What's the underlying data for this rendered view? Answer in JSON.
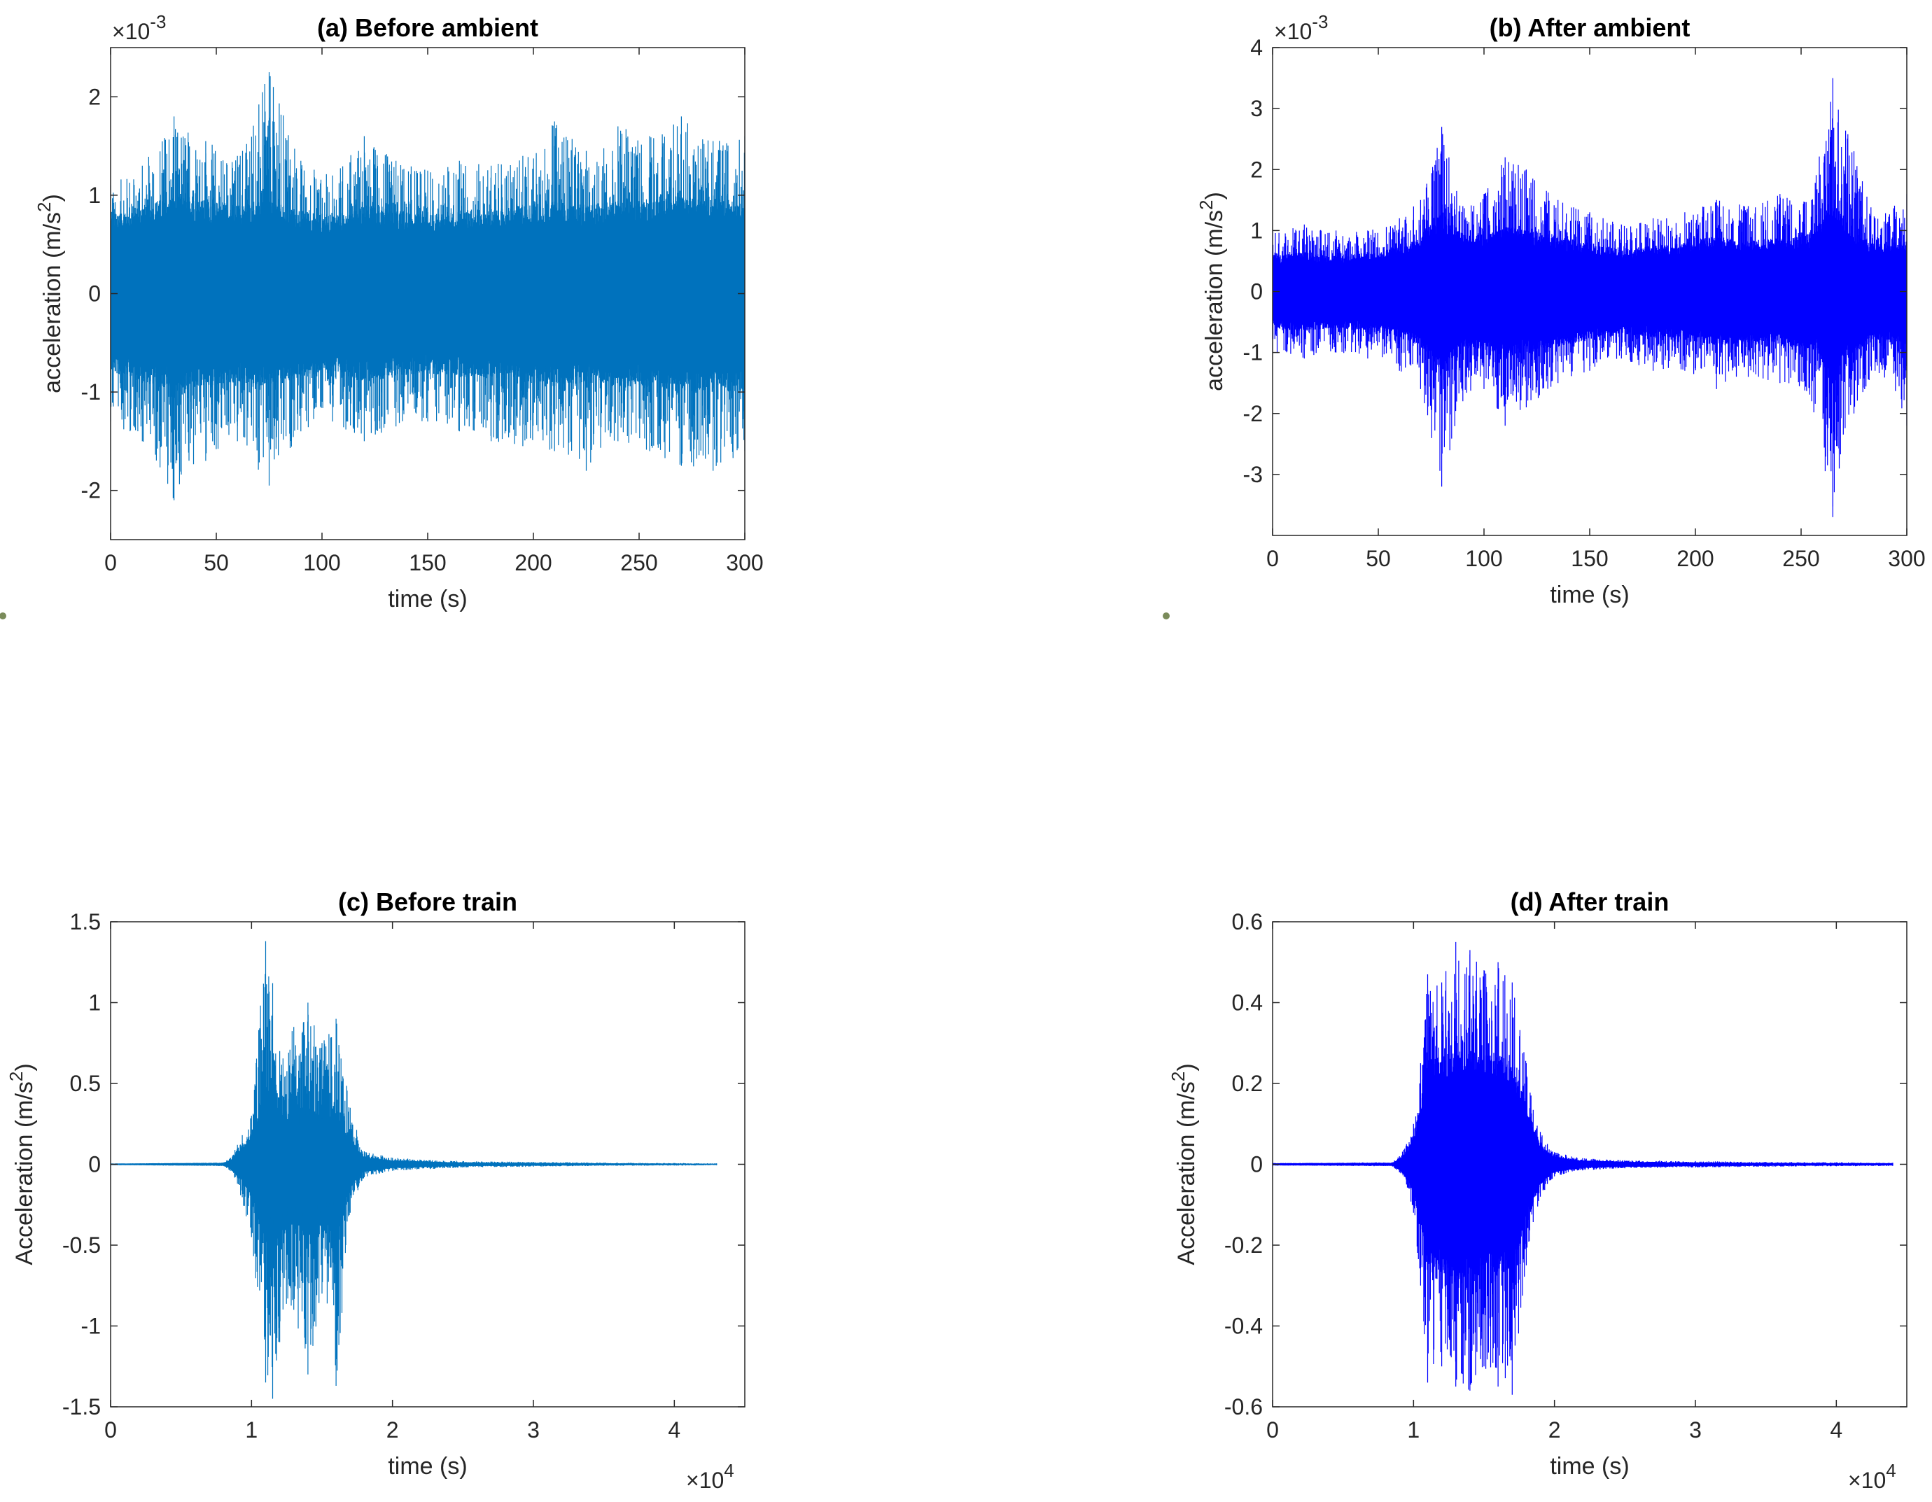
{
  "colors": {
    "before": "#0072BD",
    "after": "#0000FF",
    "axes": "#262626",
    "marker": "#7A8B5A"
  },
  "chart_data": [
    {
      "id": "a",
      "type": "line",
      "title": "(a) Before ambient",
      "xlabel": "time (s)",
      "ylabel_main": "acceleration (m/s",
      "ylabel_sup": "2",
      "ylabel_end": ")",
      "exponent_base": "×10",
      "exponent_power": "-3",
      "exponent_position": "top-left",
      "xlim": [
        0,
        300
      ],
      "ylim": [
        -2.5,
        2.5
      ],
      "xticks": [
        0,
        50,
        100,
        150,
        200,
        250,
        300
      ],
      "xtick_labels": [
        "0",
        "50",
        "100",
        "150",
        "200",
        "250",
        "300"
      ],
      "yticks": [
        -2,
        -1,
        0,
        1,
        2
      ],
      "ytick_labels": [
        "-2",
        "-1",
        "0",
        "1",
        "2"
      ],
      "color": "#0072BD",
      "grid": false,
      "series": [
        {
          "x": [
            0,
            15,
            30,
            45,
            60,
            75,
            90,
            105,
            120,
            135,
            150,
            165,
            180,
            195,
            210,
            225,
            240,
            255,
            270,
            285,
            300
          ],
          "upper": [
            1.1,
            1.3,
            1.8,
            1.55,
            1.4,
            2.25,
            1.35,
            1.2,
            1.6,
            1.35,
            1.25,
            1.35,
            1.3,
            1.4,
            1.75,
            1.45,
            1.7,
            1.6,
            1.8,
            1.55,
            1.6
          ],
          "lower": [
            -1.3,
            -1.5,
            -2.1,
            -1.7,
            -1.5,
            -1.95,
            -1.4,
            -1.3,
            -1.5,
            -1.35,
            -1.3,
            -1.4,
            -1.5,
            -1.55,
            -1.6,
            -1.8,
            -1.5,
            -1.6,
            -1.75,
            -1.8,
            -1.6
          ],
          "core": [
            0.8,
            0.9,
            1.0,
            0.95,
            0.9,
            0.95,
            0.85,
            0.8,
            0.9,
            0.85,
            0.8,
            0.85,
            0.85,
            0.9,
            0.95,
            0.9,
            0.95,
            0.95,
            1.0,
            1.0,
            1.0
          ]
        }
      ]
    },
    {
      "id": "b",
      "type": "line",
      "title": "(b) After ambient",
      "xlabel": "time (s)",
      "ylabel_main": "acceleration (m/s",
      "ylabel_sup": "2",
      "ylabel_end": ")",
      "exponent_base": "×10",
      "exponent_power": "-3",
      "exponent_position": "top-left",
      "xlim": [
        0,
        300
      ],
      "ylim": [
        -4,
        4
      ],
      "xticks": [
        0,
        50,
        100,
        150,
        200,
        250,
        300
      ],
      "xtick_labels": [
        "0",
        "50",
        "100",
        "150",
        "200",
        "250",
        "300"
      ],
      "yticks": [
        -3,
        -2,
        -1,
        0,
        1,
        2,
        3,
        4
      ],
      "ytick_labels": [
        "-3",
        "-2",
        "-1",
        "0",
        "1",
        "2",
        "3",
        "4"
      ],
      "color": "#0000FF",
      "grid": false,
      "series": [
        {
          "x": [
            0,
            15,
            30,
            45,
            60,
            70,
            80,
            90,
            100,
            110,
            120,
            135,
            150,
            165,
            180,
            195,
            210,
            225,
            240,
            255,
            265,
            275,
            285,
            300
          ],
          "upper": [
            1.0,
            1.1,
            1.0,
            1.0,
            1.2,
            1.5,
            2.7,
            1.4,
            1.6,
            2.2,
            2.0,
            1.5,
            1.3,
            1.1,
            1.2,
            1.3,
            1.5,
            1.4,
            1.6,
            1.5,
            3.5,
            2.3,
            1.2,
            1.6
          ],
          "lower": [
            -1.0,
            -1.1,
            -1.0,
            -1.1,
            -1.3,
            -1.6,
            -3.2,
            -1.8,
            -1.6,
            -2.2,
            -1.9,
            -1.5,
            -1.3,
            -1.1,
            -1.3,
            -1.3,
            -1.6,
            -1.4,
            -1.5,
            -1.8,
            -3.7,
            -2.0,
            -1.3,
            -2.2
          ],
          "core": [
            0.6,
            0.65,
            0.6,
            0.65,
            0.75,
            0.9,
            1.3,
            0.95,
            0.9,
            1.1,
            1.0,
            0.9,
            0.8,
            0.7,
            0.75,
            0.8,
            0.9,
            0.85,
            0.9,
            0.95,
            1.2,
            1.0,
            0.8,
            0.85
          ]
        }
      ]
    },
    {
      "id": "c",
      "type": "line",
      "title": "(c) Before train",
      "xlabel": "time (s)",
      "ylabel_main": "Acceleration (m/s",
      "ylabel_sup": "2",
      "ylabel_end": ")",
      "exponent_base": "×10",
      "exponent_power": "4",
      "exponent_position": "bottom-right",
      "xlim": [
        0,
        4.5
      ],
      "ylim": [
        -1.5,
        1.5
      ],
      "xticks": [
        0,
        1,
        2,
        3,
        4
      ],
      "xtick_labels": [
        "0",
        "1",
        "2",
        "3",
        "4"
      ],
      "yticks": [
        -1.5,
        -1,
        -0.5,
        0,
        0.5,
        1,
        1.5
      ],
      "ytick_labels": [
        "-1.5",
        "-1",
        "-0.5",
        "0",
        "0.5",
        "1",
        "1.5"
      ],
      "color": "#0072BD",
      "grid": false,
      "series": [
        {
          "x": [
            0,
            0.8,
            0.85,
            0.9,
            1.0,
            1.1,
            1.15,
            1.2,
            1.3,
            1.4,
            1.5,
            1.6,
            1.7,
            1.8,
            2.0,
            2.5,
            3.0,
            3.5,
            4.0,
            4.3
          ],
          "upper": [
            0.005,
            0.01,
            0.04,
            0.12,
            0.3,
            1.38,
            1.12,
            0.7,
            0.85,
            1.0,
            0.75,
            0.9,
            0.35,
            0.08,
            0.04,
            0.02,
            0.015,
            0.01,
            0.008,
            0.006
          ],
          "lower": [
            -0.005,
            -0.01,
            -0.04,
            -0.12,
            -0.45,
            -1.35,
            -1.45,
            -1.1,
            -0.9,
            -1.3,
            -0.8,
            -1.37,
            -0.3,
            -0.08,
            -0.04,
            -0.02,
            -0.015,
            -0.01,
            -0.008,
            -0.006
          ],
          "core": [
            0.005,
            0.01,
            0.03,
            0.08,
            0.2,
            0.35,
            0.4,
            0.35,
            0.3,
            0.35,
            0.3,
            0.25,
            0.15,
            0.05,
            0.025,
            0.012,
            0.01,
            0.007,
            0.005,
            0.004
          ]
        }
      ]
    },
    {
      "id": "d",
      "type": "line",
      "title": "(d) After train",
      "xlabel": "time (s)",
      "ylabel_main": "Acceleration (m/s",
      "ylabel_sup": "2",
      "ylabel_end": ")",
      "exponent_base": "×10",
      "exponent_power": "4",
      "exponent_position": "bottom-right",
      "xlim": [
        0,
        4.5
      ],
      "ylim": [
        -0.6,
        0.6
      ],
      "xticks": [
        0,
        1,
        2,
        3,
        4
      ],
      "xtick_labels": [
        "0",
        "1",
        "2",
        "3",
        "4"
      ],
      "yticks": [
        -0.6,
        -0.4,
        -0.2,
        0,
        0.2,
        0.4,
        0.6
      ],
      "ytick_labels": [
        "-0.6",
        "-0.4",
        "-0.2",
        "0",
        "0.2",
        "0.4",
        "0.6"
      ],
      "color": "#0000FF",
      "grid": false,
      "series": [
        {
          "x": [
            0,
            0.85,
            0.9,
            0.95,
            1.0,
            1.05,
            1.1,
            1.2,
            1.3,
            1.4,
            1.5,
            1.6,
            1.7,
            1.8,
            1.9,
            2.0,
            2.2,
            2.5,
            3.0,
            3.5,
            4.0,
            4.4
          ],
          "upper": [
            0.003,
            0.005,
            0.02,
            0.05,
            0.1,
            0.25,
            0.47,
            0.45,
            0.55,
            0.53,
            0.48,
            0.5,
            0.45,
            0.25,
            0.08,
            0.03,
            0.015,
            0.01,
            0.008,
            0.006,
            0.005,
            0.004
          ],
          "lower": [
            -0.003,
            -0.005,
            -0.02,
            -0.05,
            -0.12,
            -0.3,
            -0.54,
            -0.5,
            -0.55,
            -0.56,
            -0.5,
            -0.55,
            -0.57,
            -0.25,
            -0.08,
            -0.03,
            -0.015,
            -0.01,
            -0.008,
            -0.006,
            -0.005,
            -0.004
          ],
          "core": [
            0.003,
            0.004,
            0.015,
            0.035,
            0.07,
            0.15,
            0.25,
            0.27,
            0.28,
            0.28,
            0.27,
            0.27,
            0.26,
            0.15,
            0.05,
            0.02,
            0.01,
            0.007,
            0.005,
            0.004,
            0.003,
            0.003
          ]
        }
      ]
    }
  ]
}
